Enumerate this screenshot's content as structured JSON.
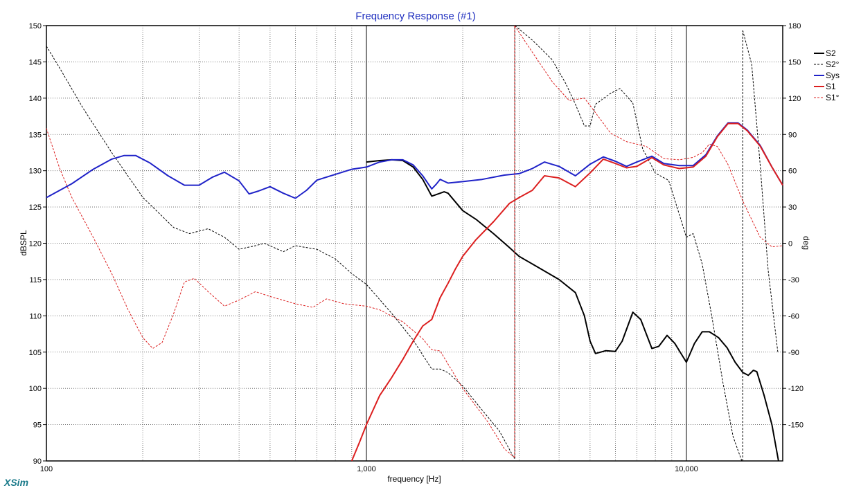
{
  "chart_data": {
    "type": "line",
    "title": "Frequency Response (#1)",
    "xlabel": "frequency [Hz]",
    "ylabel": "dBSPL",
    "y2label": "deg",
    "x_scale": "log",
    "xlim": [
      100,
      20000
    ],
    "ylim": [
      90,
      150
    ],
    "y2lim": [
      -180,
      180
    ],
    "x_tick_labels": [
      {
        "value": 100,
        "label": "100"
      },
      {
        "value": 1000,
        "label": "1,000"
      },
      {
        "value": 10000,
        "label": "10,000"
      }
    ],
    "y_ticks": [
      90,
      95,
      100,
      105,
      110,
      115,
      120,
      125,
      130,
      135,
      140,
      145,
      150
    ],
    "y2_ticks": [
      -150,
      -120,
      -90,
      -60,
      -30,
      0,
      30,
      60,
      90,
      120,
      150,
      180
    ],
    "grid": true,
    "legend_position": "right",
    "brand": "XSim",
    "series": [
      {
        "name": "S2",
        "axis": "left",
        "color": "#000000",
        "style": "solid",
        "width": 2,
        "points": [
          [
            1000,
            131.2
          ],
          [
            1100,
            131.4
          ],
          [
            1200,
            131.5
          ],
          [
            1300,
            131.4
          ],
          [
            1400,
            130.5
          ],
          [
            1500,
            128.8
          ],
          [
            1600,
            126.5
          ],
          [
            1700,
            126.9
          ],
          [
            1750,
            127.1
          ],
          [
            1800,
            126.9
          ],
          [
            2000,
            124.5
          ],
          [
            2200,
            123.3
          ],
          [
            2500,
            121.3
          ],
          [
            2800,
            119.4
          ],
          [
            3000,
            118.2
          ],
          [
            3500,
            116.5
          ],
          [
            4000,
            115.0
          ],
          [
            4500,
            113.2
          ],
          [
            4800,
            110.0
          ],
          [
            5000,
            106.5
          ],
          [
            5200,
            104.8
          ],
          [
            5600,
            105.2
          ],
          [
            6000,
            105.1
          ],
          [
            6300,
            106.5
          ],
          [
            6800,
            110.5
          ],
          [
            7200,
            109.5
          ],
          [
            7800,
            105.5
          ],
          [
            8200,
            105.8
          ],
          [
            8700,
            107.3
          ],
          [
            9200,
            106.2
          ],
          [
            10000,
            103.6
          ],
          [
            10600,
            106.2
          ],
          [
            11200,
            107.8
          ],
          [
            11800,
            107.8
          ],
          [
            12600,
            107.0
          ],
          [
            13400,
            105.6
          ],
          [
            14200,
            103.6
          ],
          [
            15000,
            102.2
          ],
          [
            15600,
            101.8
          ],
          [
            16200,
            102.5
          ],
          [
            16600,
            102.3
          ],
          [
            17500,
            99.0
          ],
          [
            18500,
            95.0
          ],
          [
            19400,
            90.0
          ]
        ]
      },
      {
        "name": "S2°",
        "axis": "right",
        "color": "#000000",
        "style": "dashed",
        "width": 1,
        "points": [
          [
            100,
            163
          ],
          [
            110,
            145
          ],
          [
            130,
            112
          ],
          [
            160,
            75
          ],
          [
            200,
            38
          ],
          [
            250,
            13
          ],
          [
            280,
            8
          ],
          [
            320,
            12
          ],
          [
            360,
            5
          ],
          [
            400,
            -5
          ],
          [
            450,
            -2
          ],
          [
            480,
            0
          ],
          [
            550,
            -7
          ],
          [
            600,
            -2
          ],
          [
            700,
            -5
          ],
          [
            800,
            -13
          ],
          [
            900,
            -25
          ],
          [
            1000,
            -34
          ],
          [
            1200,
            -58
          ],
          [
            1400,
            -80
          ],
          [
            1600,
            -104
          ],
          [
            1700,
            -104
          ],
          [
            1800,
            -107
          ],
          [
            2000,
            -118
          ],
          [
            2300,
            -138
          ],
          [
            2600,
            -155
          ],
          [
            2900,
            -178
          ],
          [
            2910,
            180
          ],
          [
            3300,
            168
          ],
          [
            3800,
            152
          ],
          [
            4200,
            132
          ],
          [
            4500,
            115
          ],
          [
            4800,
            97
          ],
          [
            5000,
            97
          ],
          [
            5200,
            115
          ],
          [
            5800,
            124
          ],
          [
            6200,
            128
          ],
          [
            6800,
            116
          ],
          [
            7300,
            78
          ],
          [
            8000,
            58
          ],
          [
            8800,
            52
          ],
          [
            9500,
            24
          ],
          [
            10000,
            5
          ],
          [
            10500,
            8
          ],
          [
            11200,
            -17
          ],
          [
            12000,
            -60
          ],
          [
            13000,
            -115
          ],
          [
            14000,
            -160
          ],
          [
            14900,
            -180
          ],
          [
            15000,
            176
          ],
          [
            16000,
            148
          ],
          [
            17000,
            65
          ],
          [
            18000,
            -22
          ],
          [
            19300,
            -90
          ]
        ]
      },
      {
        "name": "Sys",
        "axis": "left",
        "color": "#1f22c8",
        "style": "solid",
        "width": 2,
        "points": [
          [
            100,
            126.3
          ],
          [
            120,
            128.2
          ],
          [
            140,
            130.2
          ],
          [
            160,
            131.6
          ],
          [
            175,
            132.1
          ],
          [
            190,
            132.1
          ],
          [
            210,
            131.1
          ],
          [
            240,
            129.3
          ],
          [
            270,
            128.0
          ],
          [
            300,
            128.0
          ],
          [
            330,
            129.1
          ],
          [
            360,
            129.8
          ],
          [
            400,
            128.6
          ],
          [
            430,
            126.8
          ],
          [
            460,
            127.2
          ],
          [
            500,
            127.8
          ],
          [
            550,
            126.9
          ],
          [
            600,
            126.2
          ],
          [
            650,
            127.3
          ],
          [
            700,
            128.7
          ],
          [
            800,
            129.5
          ],
          [
            900,
            130.2
          ],
          [
            1000,
            130.5
          ],
          [
            1100,
            131.2
          ],
          [
            1200,
            131.5
          ],
          [
            1300,
            131.5
          ],
          [
            1400,
            130.8
          ],
          [
            1500,
            129.3
          ],
          [
            1600,
            127.5
          ],
          [
            1650,
            128.1
          ],
          [
            1700,
            128.8
          ],
          [
            1800,
            128.3
          ],
          [
            2000,
            128.5
          ],
          [
            2300,
            128.8
          ],
          [
            2700,
            129.4
          ],
          [
            3000,
            129.6
          ],
          [
            3300,
            130.3
          ],
          [
            3600,
            131.2
          ],
          [
            4000,
            130.6
          ],
          [
            4500,
            129.3
          ],
          [
            5000,
            130.9
          ],
          [
            5500,
            131.9
          ],
          [
            6000,
            131.3
          ],
          [
            6500,
            130.6
          ],
          [
            7000,
            131.2
          ],
          [
            7800,
            132.0
          ],
          [
            8500,
            131.0
          ],
          [
            9500,
            130.7
          ],
          [
            10500,
            130.7
          ],
          [
            11500,
            132.2
          ],
          [
            12500,
            134.8
          ],
          [
            13500,
            136.6
          ],
          [
            14500,
            136.6
          ],
          [
            15500,
            135.6
          ],
          [
            17000,
            133.5
          ],
          [
            18500,
            130.5
          ],
          [
            20000,
            128.0
          ]
        ]
      },
      {
        "name": "S1",
        "axis": "left",
        "color": "#dc1f1f",
        "style": "solid",
        "width": 2,
        "points": [
          [
            900,
            90.0
          ],
          [
            950,
            92.5
          ],
          [
            1000,
            95.0
          ],
          [
            1100,
            99.0
          ],
          [
            1200,
            101.5
          ],
          [
            1300,
            104.0
          ],
          [
            1400,
            106.5
          ],
          [
            1500,
            108.6
          ],
          [
            1600,
            109.5
          ],
          [
            1700,
            112.5
          ],
          [
            1800,
            114.5
          ],
          [
            1900,
            116.5
          ],
          [
            2000,
            118.2
          ],
          [
            2200,
            120.5
          ],
          [
            2500,
            123.0
          ],
          [
            2800,
            125.5
          ],
          [
            3000,
            126.3
          ],
          [
            3300,
            127.3
          ],
          [
            3600,
            129.3
          ],
          [
            4000,
            129.0
          ],
          [
            4500,
            127.8
          ],
          [
            5000,
            129.7
          ],
          [
            5500,
            131.6
          ],
          [
            6000,
            131.0
          ],
          [
            6500,
            130.4
          ],
          [
            7000,
            130.6
          ],
          [
            7800,
            131.8
          ],
          [
            8500,
            130.8
          ],
          [
            9500,
            130.3
          ],
          [
            10500,
            130.5
          ],
          [
            11500,
            132.0
          ],
          [
            12500,
            134.7
          ],
          [
            13500,
            136.5
          ],
          [
            14500,
            136.5
          ],
          [
            15500,
            135.5
          ],
          [
            17000,
            133.4
          ],
          [
            18500,
            130.5
          ],
          [
            20000,
            128.0
          ]
        ]
      },
      {
        "name": "S1°",
        "axis": "right",
        "color": "#dc1f1f",
        "style": "dashed",
        "width": 1,
        "points": [
          [
            100,
            95
          ],
          [
            110,
            62
          ],
          [
            120,
            38
          ],
          [
            140,
            5
          ],
          [
            160,
            -25
          ],
          [
            180,
            -55
          ],
          [
            200,
            -78
          ],
          [
            215,
            -87
          ],
          [
            230,
            -82
          ],
          [
            250,
            -58
          ],
          [
            270,
            -32
          ],
          [
            290,
            -29
          ],
          [
            320,
            -40
          ],
          [
            360,
            -52
          ],
          [
            400,
            -47
          ],
          [
            450,
            -40
          ],
          [
            500,
            -44
          ],
          [
            600,
            -50
          ],
          [
            680,
            -53
          ],
          [
            750,
            -46
          ],
          [
            850,
            -50
          ],
          [
            1000,
            -52
          ],
          [
            1100,
            -55
          ],
          [
            1300,
            -65
          ],
          [
            1500,
            -79
          ],
          [
            1600,
            -88
          ],
          [
            1700,
            -89
          ],
          [
            1800,
            -100
          ],
          [
            2000,
            -120
          ],
          [
            2400,
            -148
          ],
          [
            2700,
            -170
          ],
          [
            2900,
            -177
          ],
          [
            2905,
            180
          ],
          [
            3300,
            158
          ],
          [
            3800,
            134
          ],
          [
            4300,
            118
          ],
          [
            4800,
            120
          ],
          [
            5200,
            108
          ],
          [
            5800,
            91
          ],
          [
            6500,
            84
          ],
          [
            7500,
            80
          ],
          [
            8500,
            70
          ],
          [
            9500,
            69
          ],
          [
            10500,
            71
          ],
          [
            11200,
            75
          ],
          [
            11800,
            82
          ],
          [
            12500,
            80
          ],
          [
            13500,
            65
          ],
          [
            15000,
            35
          ],
          [
            17000,
            5
          ],
          [
            18500,
            -3
          ],
          [
            20000,
            -2
          ]
        ]
      }
    ]
  }
}
